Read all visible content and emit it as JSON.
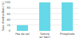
{
  "chart_data": {
    "type": "bar",
    "categories": [
      "Pas de sel",
      "Saturé\nen NaCl",
      "Phosphate"
    ],
    "values": [
      20,
      100,
      100
    ],
    "color": "#66d9e8",
    "ylabel": "Taux d'extraction [%]",
    "ylim": [
      0,
      100
    ],
    "yticks": [
      0,
      20,
      40,
      60,
      80,
      100
    ],
    "grid": true
  }
}
